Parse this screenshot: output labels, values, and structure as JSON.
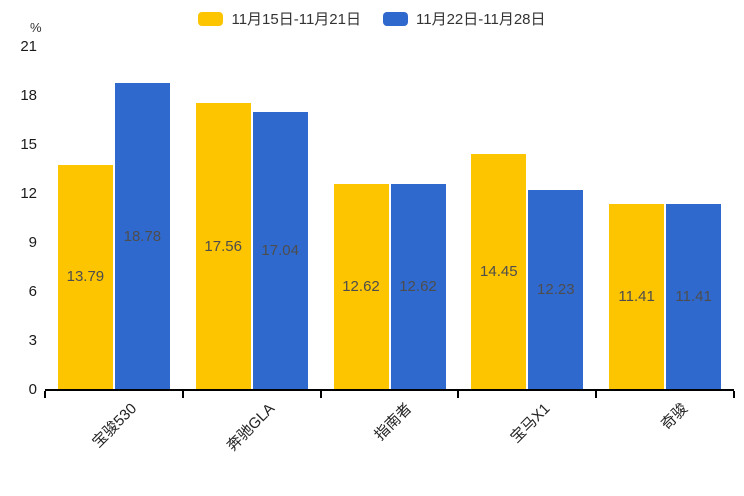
{
  "chart_data": {
    "type": "bar",
    "categories": [
      "宝骏530",
      "奔驰GLA",
      "指南者",
      "宝马X1",
      "奇骏"
    ],
    "series": [
      {
        "name": "11月15日-11月21日",
        "color": "#FDC400",
        "values": [
          13.79,
          17.56,
          12.62,
          14.45,
          11.41
        ]
      },
      {
        "name": "11月22日-11月28日",
        "color": "#3069CE",
        "values": [
          18.78,
          17.04,
          12.62,
          12.23,
          11.41
        ]
      }
    ],
    "title": "",
    "xlabel": "",
    "ylabel": "%",
    "ylim": [
      0,
      21
    ],
    "yticks": [
      0,
      3,
      6,
      9,
      12,
      15,
      18,
      21
    ],
    "grid": false,
    "legend_position": "top",
    "value_labels": true,
    "value_label_color": "#4d4d4d",
    "axis_color": "#000000"
  }
}
